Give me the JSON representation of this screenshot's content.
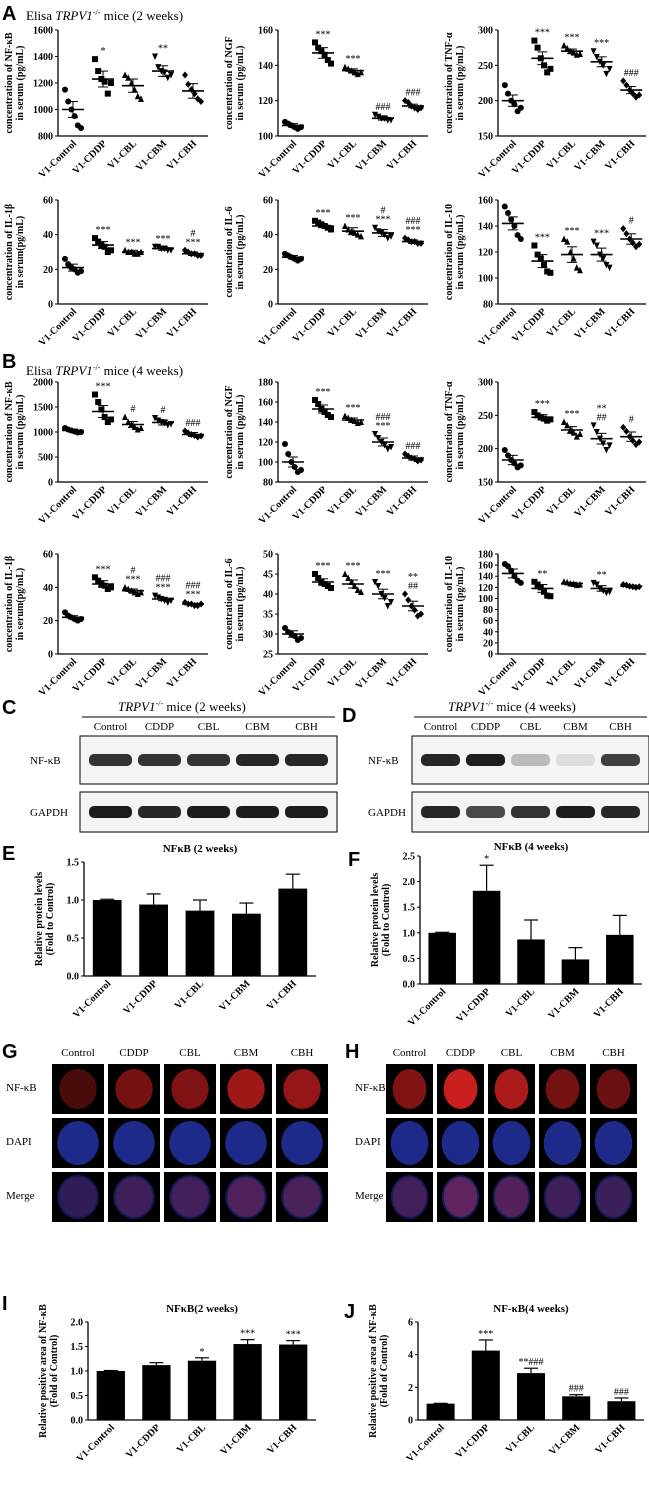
{
  "panels": {
    "A": {
      "label": "A",
      "title_prefix": "Elisa",
      "title_italic": "TRPV1",
      "title_sup": "-/-",
      "title_suffix": "mice (2 weeks)"
    },
    "B": {
      "label": "B",
      "title_prefix": "Elisa",
      "title_italic": "TRPV1",
      "title_sup": "-/-",
      "title_suffix": "mice (4 weeks)"
    },
    "C": {
      "label": "C",
      "title_italic": "TRPV1",
      "title_sup": "-/-",
      "title_suffix": "mice (2 weeks)"
    },
    "D": {
      "label": "D",
      "title_italic": "TRPV1",
      "title_sup": "-/-",
      "title_suffix": "mice (4 weeks)"
    },
    "E": {
      "label": "E"
    },
    "F": {
      "label": "F"
    },
    "G": {
      "label": "G"
    },
    "H": {
      "label": "H"
    },
    "I": {
      "label": "I"
    },
    "J": {
      "label": "J"
    }
  },
  "blots": {
    "lanes": [
      "Control",
      "CDDP",
      "CBL",
      "CBM",
      "CBH"
    ],
    "rows": [
      "NF-κB",
      "GAPDH"
    ]
  },
  "if_panels": {
    "cols": [
      "Control",
      "CDDP",
      "CBL",
      "CBM",
      "CBH"
    ],
    "rows": [
      "NF-κB",
      "DAPI",
      "Merge"
    ]
  },
  "colors": {
    "nfkb": "#d42020",
    "dapi": "#2838b8",
    "bar": "#000000"
  },
  "chart_data": [
    {
      "id": "A1",
      "type": "scatter",
      "ylabel1": "concentration of NF-κB",
      "ylabel2": "in serum (pg/mL)",
      "ylim": [
        800,
        1600
      ],
      "yticks": [
        800,
        1000,
        1200,
        1400,
        1600
      ],
      "categories": [
        "V1-Control",
        "V1-CDDP",
        "V1-CBL",
        "V1-CBM",
        "V1-CBH"
      ],
      "means": [
        1000,
        1230,
        1180,
        1290,
        1140
      ],
      "sem": [
        60,
        60,
        50,
        40,
        55
      ],
      "points": [
        [
          1150,
          1060,
          1000,
          950,
          880,
          860
        ],
        [
          1380,
          1290,
          1230,
          1210,
          1120,
          1200
        ],
        [
          1260,
          1240,
          1200,
          1150,
          1100,
          1080
        ],
        [
          1400,
          1320,
          1290,
          1280,
          1240,
          1260
        ],
        [
          1260,
          1190,
          1150,
          1120,
          1080,
          1060
        ]
      ],
      "sig": [
        "",
        "*",
        "",
        "**",
        ""
      ]
    },
    {
      "id": "A2",
      "type": "scatter",
      "ylabel1": "concentration of NGF",
      "ylabel2": "in serum (pg/mL)",
      "ylim": [
        100,
        160
      ],
      "yticks": [
        100,
        120,
        140,
        160
      ],
      "categories": [
        "V1-Control",
        "V1-CDDP",
        "V1-CBL",
        "V1-CBM",
        "V1-CBH"
      ],
      "means": [
        106,
        147,
        137,
        110,
        117
      ],
      "sem": [
        1,
        3,
        1,
        1,
        1
      ],
      "points": [
        [
          108,
          107,
          106,
          105,
          104,
          105
        ],
        [
          153,
          150,
          148,
          146,
          143,
          141
        ],
        [
          139,
          138,
          137,
          136,
          135,
          136
        ],
        [
          112,
          111,
          110,
          110,
          109,
          109
        ],
        [
          120,
          119,
          117,
          116,
          115,
          116
        ]
      ],
      "sig": [
        "",
        "***",
        "***",
        "###",
        "###"
      ]
    },
    {
      "id": "A3",
      "type": "scatter",
      "ylabel1": "concentration of TNF-α",
      "ylabel2": "in serum (pg/mL)",
      "ylim": [
        150,
        300
      ],
      "yticks": [
        150,
        200,
        250,
        300
      ],
      "categories": [
        "V1-Control",
        "V1-CDDP",
        "V1-CBL",
        "V1-CBM",
        "V1-CBH"
      ],
      "means": [
        200,
        260,
        270,
        255,
        215
      ],
      "sem": [
        8,
        9,
        3,
        7,
        5
      ],
      "points": [
        [
          222,
          210,
          200,
          195,
          185,
          190
        ],
        [
          285,
          275,
          260,
          250,
          240,
          245
        ],
        [
          278,
          274,
          270,
          268,
          265,
          266
        ],
        [
          270,
          262,
          255,
          250,
          238,
          245
        ],
        [
          228,
          222,
          215,
          210,
          205,
          208
        ]
      ],
      "sig": [
        "",
        "***",
        "***",
        "***",
        "###"
      ]
    },
    {
      "id": "A4",
      "type": "scatter",
      "ylabel1": "concentration of IL-1β",
      "ylabel2": "in serum(pg/mL)",
      "ylim": [
        0,
        60
      ],
      "yticks": [
        0,
        20,
        40,
        60
      ],
      "categories": [
        "V1-Control",
        "V1-CDDP",
        "V1-CBL",
        "V1-CBM",
        "V1-CBH"
      ],
      "means": [
        21,
        34,
        30,
        32,
        29
      ],
      "sem": [
        2,
        2,
        1,
        1,
        1
      ],
      "points": [
        [
          26,
          23,
          21,
          20,
          18,
          19
        ],
        [
          38,
          36,
          34,
          33,
          30,
          31
        ],
        [
          31,
          30,
          30,
          29,
          29,
          30
        ],
        [
          33,
          33,
          32,
          32,
          31,
          31
        ],
        [
          31,
          30,
          29,
          29,
          28,
          28
        ]
      ],
      "sig": [
        "",
        "***",
        "***",
        "***",
        "***"
      ],
      "sig2": [
        "",
        "",
        "",
        "",
        "#"
      ]
    },
    {
      "id": "A5",
      "type": "scatter",
      "ylabel1": "concentration of IL-6",
      "ylabel2": "in serum (pg/mL)",
      "ylim": [
        0,
        60
      ],
      "yticks": [
        0,
        20,
        40,
        60
      ],
      "categories": [
        "V1-Control",
        "V1-CDDP",
        "V1-CBL",
        "V1-CBM",
        "V1-CBH"
      ],
      "means": [
        27,
        45,
        42,
        41,
        36
      ],
      "sem": [
        1,
        1,
        2,
        2,
        1
      ],
      "points": [
        [
          29,
          28,
          27,
          26,
          25,
          26
        ],
        [
          48,
          47,
          46,
          45,
          44,
          43
        ],
        [
          45,
          43,
          42,
          41,
          40,
          39
        ],
        [
          44,
          42,
          41,
          40,
          38,
          39
        ],
        [
          38,
          37,
          36,
          36,
          35,
          35
        ]
      ],
      "sig": [
        "",
        "***",
        "***",
        "***",
        "***"
      ],
      "sig2": [
        "",
        "",
        "",
        "#",
        "###"
      ]
    },
    {
      "id": "A6",
      "type": "scatter",
      "ylabel1": "concentration of IL-10",
      "ylabel2": "in serum (pg/mL)",
      "ylim": [
        80,
        160
      ],
      "yticks": [
        80,
        100,
        120,
        140,
        160
      ],
      "categories": [
        "V1-Control",
        "V1-CDDP",
        "V1-CBL",
        "V1-CBM",
        "V1-CBH"
      ],
      "means": [
        142,
        113,
        118,
        118,
        130
      ],
      "sem": [
        5,
        5,
        6,
        5,
        4
      ],
      "points": [
        [
          155,
          150,
          145,
          140,
          133,
          130
        ],
        [
          125,
          118,
          115,
          110,
          105,
          104
        ],
        [
          130,
          128,
          120,
          115,
          108,
          106
        ],
        [
          128,
          125,
          118,
          115,
          110,
          108
        ],
        [
          138,
          134,
          130,
          127,
          124,
          126
        ]
      ],
      "sig": [
        "",
        "***",
        "***",
        "***",
        "#"
      ]
    },
    {
      "id": "B1",
      "type": "scatter",
      "ylabel1": "concentration of NF-κB",
      "ylabel2": "in serum (pg/mL)",
      "ylim": [
        0,
        2000
      ],
      "yticks": [
        0,
        500,
        1000,
        1500,
        2000
      ],
      "categories": [
        "V1-Control",
        "V1-CDDP",
        "V1-CBL",
        "V1-CBM",
        "V1-CBH"
      ],
      "means": [
        1030,
        1410,
        1150,
        1190,
        950
      ],
      "sem": [
        30,
        120,
        60,
        50,
        40
      ],
      "points": [
        [
          1080,
          1050,
          1030,
          1010,
          990,
          1000
        ],
        [
          1750,
          1600,
          1450,
          1300,
          1200,
          1250
        ],
        [
          1300,
          1200,
          1150,
          1100,
          1050,
          1080
        ],
        [
          1280,
          1230,
          1200,
          1180,
          1140,
          1160
        ],
        [
          1020,
          980,
          950,
          930,
          900,
          920
        ]
      ],
      "sig": [
        "",
        "***",
        "#",
        "#",
        "###"
      ]
    },
    {
      "id": "B2",
      "type": "scatter",
      "ylabel1": "concentration of NGF",
      "ylabel2": "in serum (pg/mL)",
      "ylim": [
        80,
        180
      ],
      "yticks": [
        80,
        100,
        120,
        140,
        160,
        180
      ],
      "categories": [
        "V1-Control",
        "V1-CDDP",
        "V1-CBL",
        "V1-CBM",
        "V1-CBH"
      ],
      "means": [
        100,
        153,
        142,
        120,
        104
      ],
      "sem": [
        5,
        4,
        2,
        4,
        2
      ],
      "points": [
        [
          118,
          108,
          100,
          95,
          90,
          92
        ],
        [
          162,
          158,
          153,
          150,
          147,
          145
        ],
        [
          146,
          144,
          142,
          141,
          139,
          140
        ],
        [
          128,
          124,
          120,
          117,
          113,
          115
        ],
        [
          108,
          106,
          104,
          103,
          101,
          102
        ]
      ],
      "sig": [
        "",
        "***",
        "***",
        "***",
        "###"
      ],
      "sig2": [
        "",
        "",
        "",
        "###",
        ""
      ]
    },
    {
      "id": "B3",
      "type": "scatter",
      "ylabel1": "concentration of TNF-α",
      "ylabel2": "in serum (pg/mL)",
      "ylim": [
        150,
        300
      ],
      "yticks": [
        150,
        200,
        250,
        300
      ],
      "categories": [
        "V1-Control",
        "V1-CDDP",
        "V1-CBL",
        "V1-CBM",
        "V1-CBH"
      ],
      "means": [
        183,
        247,
        228,
        215,
        218
      ],
      "sem": [
        7,
        4,
        5,
        8,
        7
      ],
      "points": [
        [
          198,
          190,
          183,
          178,
          172,
          175
        ],
        [
          255,
          250,
          247,
          245,
          242,
          244
        ],
        [
          240,
          235,
          228,
          224,
          218,
          222
        ],
        [
          235,
          225,
          215,
          208,
          198,
          205
        ],
        [
          232,
          226,
          218,
          212,
          206,
          210
        ]
      ],
      "sig": [
        "",
        "***",
        "***",
        "##",
        "#"
      ],
      "sig2": [
        "",
        "",
        "",
        "**",
        ""
      ]
    },
    {
      "id": "B4",
      "type": "scatter",
      "ylabel1": "concentration of IL-1β",
      "ylabel2": "in serum(pg/mL)",
      "ylim": [
        0,
        60
      ],
      "yticks": [
        0,
        20,
        40,
        60
      ],
      "categories": [
        "V1-Control",
        "V1-CDDP",
        "V1-CBL",
        "V1-CBM",
        "V1-CBH"
      ],
      "means": [
        22,
        42,
        38,
        33,
        30
      ],
      "sem": [
        1,
        2,
        1,
        1,
        0.5
      ],
      "points": [
        [
          25,
          23,
          22,
          21,
          20,
          21
        ],
        [
          46,
          44,
          42,
          41,
          39,
          40
        ],
        [
          40,
          39,
          38,
          37,
          36,
          37
        ],
        [
          35,
          34,
          33,
          32,
          31,
          32
        ],
        [
          31,
          30,
          30,
          29,
          29,
          30
        ]
      ],
      "sig": [
        "",
        "***",
        "***",
        "***",
        "***"
      ],
      "sig2": [
        "",
        "",
        "#",
        "###",
        "###"
      ]
    },
    {
      "id": "B5",
      "type": "scatter",
      "ylabel1": "concentration of IL-6",
      "ylabel2": "in serum (pg/mL)",
      "ylim": [
        25,
        50
      ],
      "yticks": [
        25,
        30,
        35,
        40,
        45,
        50
      ],
      "categories": [
        "V1-Control",
        "V1-CDDP",
        "V1-CBL",
        "V1-CBM",
        "V1-CBH"
      ],
      "means": [
        30,
        43,
        42.5,
        40,
        37
      ],
      "sem": [
        0.8,
        0.8,
        1,
        1.2,
        1.2
      ],
      "points": [
        [
          31.5,
          30.5,
          30,
          29.5,
          28.5,
          29
        ],
        [
          45,
          44,
          43,
          42.5,
          42,
          41.5
        ],
        [
          45,
          44,
          43,
          42,
          41,
          40.5
        ],
        [
          43,
          42,
          40,
          39,
          37,
          38
        ],
        [
          40,
          38.5,
          37,
          36,
          34.5,
          35
        ]
      ],
      "sig": [
        "",
        "***",
        "***",
        "***",
        "##"
      ],
      "sig2": [
        "",
        "",
        "",
        "",
        "**"
      ]
    },
    {
      "id": "B6",
      "type": "scatter",
      "ylabel1": "concentration of IL-10",
      "ylabel2": "in serum (pg/mL)",
      "ylim": [
        0,
        180
      ],
      "yticks": [
        0,
        20,
        40,
        60,
        80,
        100,
        120,
        140,
        160,
        180
      ],
      "categories": [
        "V1-Control",
        "V1-CDDP",
        "V1-CBL",
        "V1-CBM",
        "V1-CBH"
      ],
      "means": [
        145,
        118,
        127,
        118,
        122
      ],
      "sem": [
        8,
        7,
        2,
        5,
        2
      ],
      "points": [
        [
          162,
          158,
          150,
          140,
          132,
          128
        ],
        [
          130,
          125,
          120,
          112,
          105,
          104
        ],
        [
          130,
          129,
          127,
          126,
          124,
          125
        ],
        [
          128,
          125,
          118,
          114,
          110,
          112
        ],
        [
          125,
          124,
          122,
          121,
          120,
          121
        ]
      ],
      "sig": [
        "",
        "**",
        "",
        "**",
        ""
      ]
    },
    {
      "id": "E",
      "type": "bar",
      "title": "NFκB (2 weeks)",
      "ylabel1": "Relative protein levels",
      "ylabel2": "(Fold to Control)",
      "ylim": [
        0,
        1.5
      ],
      "yticks": [
        0.0,
        0.5,
        1.0,
        1.5
      ],
      "categories": [
        "V1-Control",
        "V1-CDDP",
        "V1-CBL",
        "V1-CBM",
        "V1-CBH"
      ],
      "values": [
        1.0,
        0.94,
        0.86,
        0.82,
        1.15
      ],
      "sem": [
        0.01,
        0.14,
        0.14,
        0.14,
        0.19
      ],
      "sig": [
        "",
        "",
        "",
        "",
        ""
      ]
    },
    {
      "id": "F",
      "type": "bar",
      "title": "NFκB (4 weeks)",
      "ylabel1": "Relative protein levels",
      "ylabel2": "(Fold to Control)",
      "ylim": [
        0,
        2.5
      ],
      "yticks": [
        0.0,
        0.5,
        1.0,
        1.5,
        2.0,
        2.5
      ],
      "categories": [
        "V1-Control",
        "V1-CDDP",
        "V1-CBL",
        "V1-CBM",
        "V1-CBH"
      ],
      "values": [
        1.0,
        1.82,
        0.87,
        0.48,
        0.96
      ],
      "sem": [
        0.01,
        0.5,
        0.38,
        0.23,
        0.38
      ],
      "sig": [
        "",
        "*",
        "",
        "",
        ""
      ]
    },
    {
      "id": "I",
      "type": "bar",
      "title": "NFκB(2 weeks)",
      "ylabel1": "Relative positive area of NF-κB",
      "ylabel2": "(Fold of Control)",
      "ylim": [
        0,
        2.0
      ],
      "yticks": [
        0.0,
        0.5,
        1.0,
        1.5,
        2.0
      ],
      "categories": [
        "V1-Control",
        "V1-CDDP",
        "V1-CBL",
        "V1-CBM",
        "V1-CBH"
      ],
      "values": [
        1.0,
        1.12,
        1.21,
        1.55,
        1.54
      ],
      "sem": [
        0.01,
        0.05,
        0.06,
        0.09,
        0.08
      ],
      "sig": [
        "",
        "",
        "*",
        "***",
        "***"
      ]
    },
    {
      "id": "J",
      "type": "bar",
      "title": "NF-κB(4 weeks)",
      "ylabel1": "Relative positive area of NF-κB",
      "ylabel2": "(Fold of Control)",
      "ylim": [
        0,
        6
      ],
      "yticks": [
        0,
        2,
        4,
        6
      ],
      "categories": [
        "V1-Control",
        "V1-CDDP",
        "V1-CBL",
        "V1-CBM",
        "V1-CBH"
      ],
      "values": [
        1.0,
        4.25,
        2.87,
        1.45,
        1.15
      ],
      "sem": [
        0.02,
        0.65,
        0.3,
        0.1,
        0.2
      ],
      "sig": [
        "",
        "***",
        "**###",
        "###",
        "###"
      ]
    }
  ]
}
